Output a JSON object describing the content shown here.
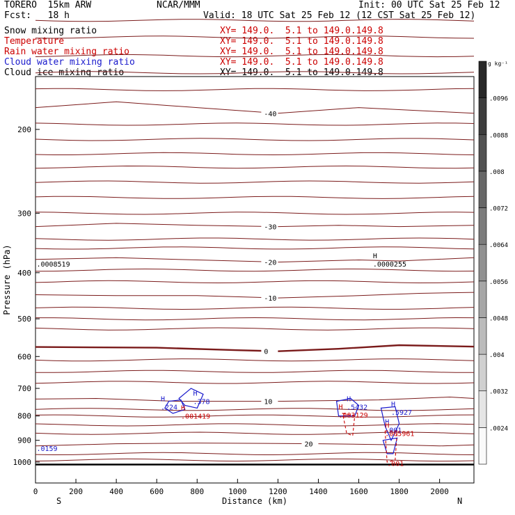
{
  "header": {
    "model": "TORERO  15km ARW",
    "org": "NCAR/MMM",
    "init": "Init: 00 UTC Sat 25 Feb 12",
    "fcst": "Fcst:   18 h",
    "valid": "Valid: 18 UTC Sat 25 Feb 12 (12 CST Sat 25 Feb 12)"
  },
  "fields": [
    {
      "name": "Snow mixing ratio",
      "xy": "XY= 149.0.  5.1 to 149.0.149.8",
      "color": "#000000",
      "xy_color": "#cc0000"
    },
    {
      "name": "Temperature",
      "xy": "XY= 149.0.  5.1 to 149.0.149.8",
      "color": "#cc0000",
      "xy_color": "#cc0000"
    },
    {
      "name": "Rain water mixing ratio",
      "xy": "XY= 149.0.  5.1 to 149.0.149.8",
      "color": "#cc0000",
      "xy_color": "#cc0000"
    },
    {
      "name": "Cloud water mixing ratio",
      "xy": "XY= 149.0.  5.1 to 149.0.149.8",
      "color": "#1a1acc",
      "xy_color": "#cc0000"
    },
    {
      "name": "Cloud ice mixing ratio",
      "xy": "XY= 149.0.  5.1 to 149.0.149.8",
      "color": "#000000",
      "xy_color": "#000000"
    }
  ],
  "chart_data": {
    "type": "contour-cross-section",
    "xlabel": "Distance (km)",
    "ylabel": "Pressure (hPa)",
    "xlim": [
      0,
      2170
    ],
    "ylim": [
      1000,
      140
    ],
    "yscale": "log",
    "x_ticks": [
      0,
      200,
      400,
      600,
      800,
      1000,
      1200,
      1400,
      1600,
      1800,
      2000
    ],
    "y_ticks": [
      200,
      300,
      400,
      500,
      600,
      700,
      800,
      900,
      1000
    ],
    "x_end_labels": {
      "left": "S",
      "right": "N"
    },
    "temperature_isotherms": [
      {
        "label": "-40",
        "points": [
          [
            0,
            180
          ],
          [
            400,
            175
          ],
          [
            800,
            180
          ],
          [
            1200,
            185
          ],
          [
            1600,
            180
          ],
          [
            2170,
            185
          ]
        ]
      },
      {
        "label": "-30",
        "points": [
          [
            0,
            320
          ],
          [
            400,
            315
          ],
          [
            800,
            318
          ],
          [
            1200,
            320
          ],
          [
            1500,
            318
          ],
          [
            1800,
            320
          ],
          [
            2170,
            318
          ]
        ]
      },
      {
        "label": "-20",
        "points": [
          [
            0,
            375
          ],
          [
            400,
            372
          ],
          [
            800,
            376
          ],
          [
            1200,
            380
          ],
          [
            1600,
            376
          ],
          [
            1800,
            378
          ],
          [
            2170,
            372
          ]
        ]
      },
      {
        "label": "-10",
        "points": [
          [
            0,
            445
          ],
          [
            400,
            447
          ],
          [
            800,
            447
          ],
          [
            1200,
            452
          ],
          [
            1600,
            447
          ],
          [
            1900,
            442
          ],
          [
            2170,
            440
          ]
        ]
      },
      {
        "label": "0",
        "bold": true,
        "points": [
          [
            0,
            573
          ],
          [
            600,
            575
          ],
          [
            1000,
            582
          ],
          [
            1200,
            585
          ],
          [
            1500,
            578
          ],
          [
            1800,
            568
          ],
          [
            2170,
            572
          ]
        ]
      },
      {
        "label": "10",
        "points": [
          [
            0,
            737
          ],
          [
            300,
            735
          ],
          [
            700,
            745
          ],
          [
            1200,
            745
          ],
          [
            1700,
            740
          ],
          [
            2050,
            730
          ],
          [
            2170,
            735
          ]
        ]
      },
      {
        "label": "20",
        "points": [
          [
            0,
            925
          ],
          [
            400,
            915
          ],
          [
            800,
            912
          ],
          [
            1400,
            915
          ],
          [
            1800,
            920
          ],
          [
            2000,
            925
          ],
          [
            2170,
            920
          ]
        ]
      }
    ],
    "labelled_extrema": [
      {
        "symbol": "H",
        "value": ".378",
        "x": 780,
        "p": 745,
        "color": "#1a1acc"
      },
      {
        "symbol": "H",
        "value": ".224",
        "x": 620,
        "p": 765,
        "color": "#1a1acc"
      },
      {
        "symbol": "H",
        "value": ".001419",
        "x": 720,
        "p": 800,
        "color": "#cc0000"
      },
      {
        "symbol": "H",
        "value": ".5432",
        "x": 1540,
        "p": 765,
        "color": "#1a1acc"
      },
      {
        "symbol": "H",
        "value": ".003129",
        "x": 1500,
        "p": 795,
        "color": "#cc0000"
      },
      {
        "symbol": "H",
        "value": ".5927",
        "x": 1760,
        "p": 785,
        "color": "#1a1acc"
      },
      {
        "symbol": "H",
        "value": ".001",
        "x": 1730,
        "p": 855,
        "color": "#1a1acc"
      },
      {
        "symbol": "H",
        "value": ".005961",
        "x": 1730,
        "p": 870,
        "color": "#cc0000"
      },
      {
        "symbol": "H",
        "value": ".0000255",
        "x": 1670,
        "p": 383,
        "color": "#000000"
      },
      {
        "symbol": "",
        "value": ".0008519",
        "x": 5,
        "p": 383,
        "color": "#000000"
      },
      {
        "symbol": "",
        "value": ".0159",
        "x": 5,
        "p": 935,
        "color": "#1a1acc"
      },
      {
        "symbol": "",
        "value": ".001",
        "x": 1740,
        "p": 1005,
        "color": "#cc0000"
      }
    ],
    "colorbar": {
      "unit": "g kg⁻¹",
      "tick_labels": [
        ".0024",
        ".0032",
        ".004",
        ".0048",
        ".0056",
        ".0064",
        ".0072",
        ".008",
        ".0088",
        ".0096"
      ]
    }
  }
}
